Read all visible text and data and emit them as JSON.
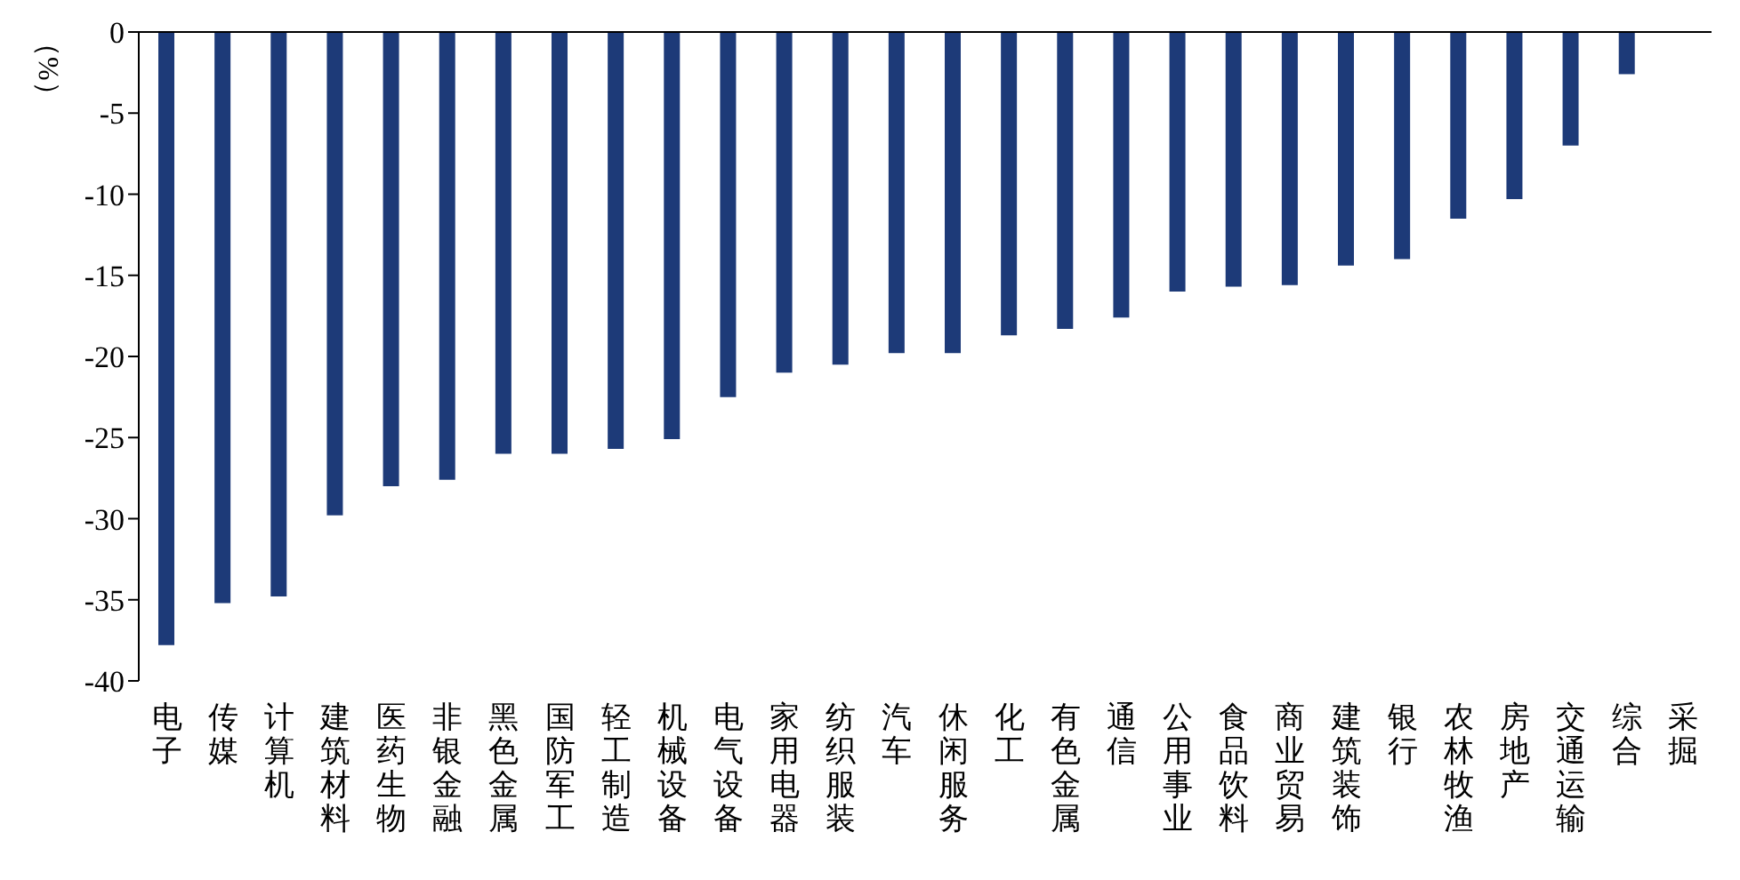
{
  "chart_data": {
    "type": "bar",
    "ylabel": "（%）",
    "categories": [
      "电子",
      "传媒",
      "计算机",
      "建筑材料",
      "医药生物",
      "非银金融",
      "黑色金属",
      "国防军工",
      "轻工制造",
      "机械设备",
      "电气设备",
      "家用电器",
      "纺织服装",
      "汽车",
      "休闲服务",
      "化工",
      "有色金属",
      "通信",
      "公用事业",
      "食品饮料",
      "商业贸易",
      "建筑装饰",
      "银行",
      "农林牧渔",
      "房地产",
      "交通运输",
      "综合",
      "采掘"
    ],
    "values": [
      -37.8,
      -35.2,
      -34.8,
      -29.8,
      -28.0,
      -27.6,
      -26.0,
      -26.0,
      -25.7,
      -25.1,
      -22.5,
      -21.0,
      -20.5,
      -19.8,
      -19.8,
      -18.7,
      -18.3,
      -17.6,
      -16.0,
      -15.7,
      -15.6,
      -14.4,
      -14.0,
      -11.5,
      -10.3,
      -7.0,
      -2.6,
      0
    ],
    "color": "#1d3a78",
    "ylim": [
      -40,
      0
    ],
    "yticks": [
      0,
      -5,
      -10,
      -15,
      -20,
      -25,
      -30,
      -35,
      -40
    ],
    "grid": false,
    "legend": false
  }
}
